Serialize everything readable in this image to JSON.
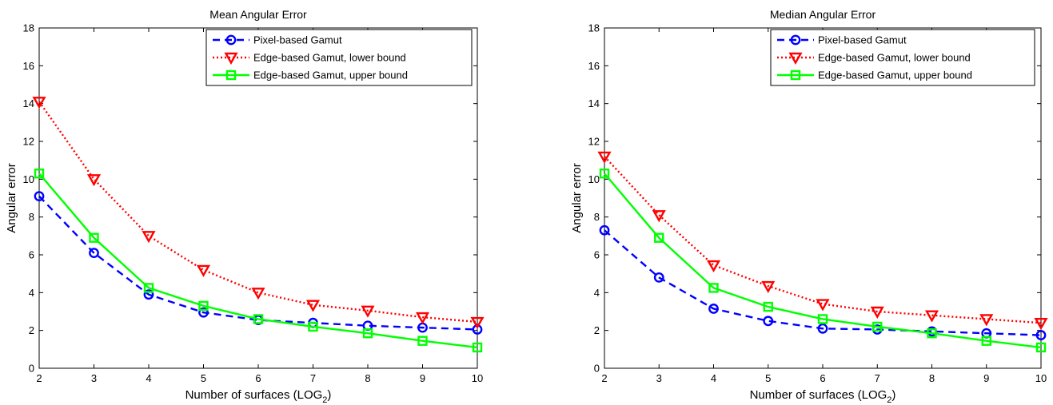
{
  "chart_data": [
    {
      "type": "line",
      "title": "Mean Angular Error",
      "xlabel": "Number of surfaces (LOG",
      "xlabel_sub": "2",
      "xlabel_end": ")",
      "ylabel": "Angular error",
      "xlim": [
        2,
        10
      ],
      "ylim": [
        0,
        18
      ],
      "x": [
        2,
        3,
        4,
        5,
        6,
        7,
        8,
        9,
        10
      ],
      "xticks": [
        "2",
        "3",
        "4",
        "5",
        "6",
        "7",
        "8",
        "9",
        "10"
      ],
      "yticks": [
        "0",
        "2",
        "4",
        "6",
        "8",
        "10",
        "12",
        "14",
        "16",
        "18"
      ],
      "legend_position": "top-right",
      "grid": false,
      "series": [
        {
          "name": "Pixel-based Gamut",
          "color": "#0000ff",
          "line": "dashed",
          "marker": "circle",
          "values": [
            9.1,
            6.1,
            3.9,
            2.95,
            2.55,
            2.4,
            2.25,
            2.15,
            2.05
          ]
        },
        {
          "name": "Edge-based Gamut, lower bound",
          "color": "#ff0000",
          "line": "dotted",
          "marker": "triangle-down",
          "values": [
            14.1,
            10.0,
            7.0,
            5.2,
            4.0,
            3.35,
            3.05,
            2.7,
            2.45
          ]
        },
        {
          "name": "Edge-based Gamut, upper bound",
          "color": "#00ff00",
          "line": "solid",
          "marker": "square",
          "values": [
            10.3,
            6.9,
            4.25,
            3.3,
            2.6,
            2.2,
            1.85,
            1.45,
            1.1
          ]
        }
      ]
    },
    {
      "type": "line",
      "title": "Median Angular Error",
      "xlabel": "Number of surfaces (LOG",
      "xlabel_sub": "2",
      "xlabel_end": ")",
      "ylabel": "Angular error",
      "xlim": [
        2,
        10
      ],
      "ylim": [
        0,
        18
      ],
      "x": [
        2,
        3,
        4,
        5,
        6,
        7,
        8,
        9,
        10
      ],
      "xticks": [
        "2",
        "3",
        "4",
        "5",
        "6",
        "7",
        "8",
        "9",
        "10"
      ],
      "yticks": [
        "0",
        "2",
        "4",
        "6",
        "8",
        "10",
        "12",
        "14",
        "16",
        "18"
      ],
      "legend_position": "top-right",
      "grid": false,
      "series": [
        {
          "name": "Pixel-based Gamut",
          "color": "#0000ff",
          "line": "dashed",
          "marker": "circle",
          "values": [
            7.3,
            4.8,
            3.15,
            2.5,
            2.1,
            2.05,
            1.95,
            1.85,
            1.75
          ]
        },
        {
          "name": "Edge-based Gamut, lower bound",
          "color": "#ff0000",
          "line": "dotted",
          "marker": "triangle-down",
          "values": [
            11.2,
            8.1,
            5.45,
            4.35,
            3.4,
            3.0,
            2.8,
            2.6,
            2.4
          ]
        },
        {
          "name": "Edge-based Gamut, upper bound",
          "color": "#00ff00",
          "line": "solid",
          "marker": "square",
          "values": [
            10.3,
            6.9,
            4.25,
            3.25,
            2.6,
            2.2,
            1.85,
            1.45,
            1.1
          ]
        }
      ]
    }
  ]
}
